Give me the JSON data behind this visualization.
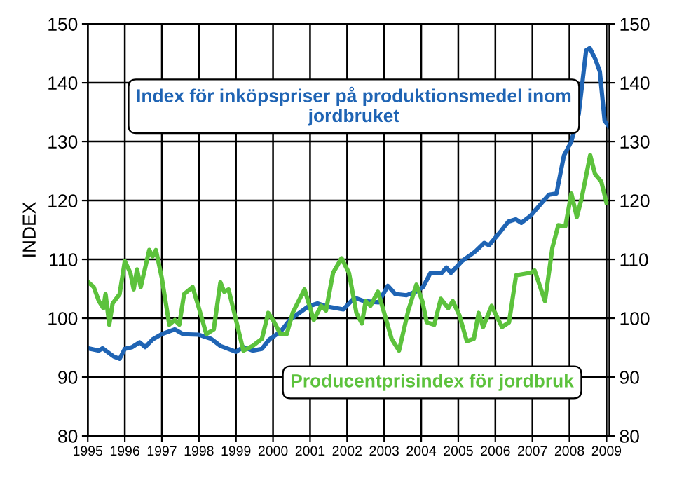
{
  "chart_data": {
    "type": "line",
    "ylabel": "INDEX",
    "xlim": [
      1995,
      2009.08
    ],
    "xticks": [
      1995,
      1996,
      1997,
      1998,
      1999,
      2000,
      2001,
      2002,
      2003,
      2004,
      2005,
      2006,
      2007,
      2008,
      2009
    ],
    "ylim": [
      80,
      150
    ],
    "yticks": [
      80,
      90,
      100,
      110,
      120,
      130,
      140,
      150
    ],
    "y2lim": [
      80,
      150
    ],
    "y2ticks": [
      80,
      90,
      100,
      110,
      120,
      130,
      140,
      150
    ],
    "grid": true,
    "legend": false,
    "marker": "none",
    "line_style": "solid",
    "series": [
      {
        "name": "Index för inköpspriser på produktionsmedel inom jordbruket",
        "color": "#1f64b4",
        "x": [
          1995.0,
          1995.3,
          1995.4,
          1995.7,
          1995.86,
          1996.0,
          1996.2,
          1996.4,
          1996.55,
          1996.75,
          1997.0,
          1997.35,
          1997.57,
          1998.0,
          1998.33,
          1998.58,
          1999.0,
          1999.2,
          1999.45,
          1999.7,
          1999.9,
          2000.2,
          2000.45,
          2000.95,
          2001.2,
          2001.45,
          2001.9,
          2002.2,
          2002.45,
          2002.85,
          2003.1,
          2003.3,
          2003.6,
          2003.85,
          2004.05,
          2004.25,
          2004.55,
          2004.68,
          2004.8,
          2005.1,
          2005.45,
          2005.7,
          2005.83,
          2006.15,
          2006.35,
          2006.55,
          2006.7,
          2006.95,
          2007.25,
          2007.45,
          2007.65,
          2007.85,
          2008.05,
          2008.25,
          2008.45,
          2008.55,
          2008.7,
          2008.82,
          2008.95,
          2009.08
        ],
        "values": [
          94.9,
          94.5,
          94.9,
          93.5,
          93.1,
          94.8,
          95.1,
          95.9,
          95.1,
          96.4,
          97.3,
          98.1,
          97.3,
          97.2,
          96.5,
          95.3,
          94.3,
          95.1,
          94.5,
          94.8,
          96.4,
          97.7,
          99.7,
          102.0,
          102.5,
          102.0,
          101.5,
          103.5,
          102.9,
          102.7,
          105.5,
          104.1,
          103.9,
          104.5,
          105.3,
          107.7,
          107.7,
          108.6,
          107.7,
          109.7,
          111.3,
          112.8,
          112.4,
          114.8,
          116.4,
          116.8,
          116.2,
          117.4,
          119.6,
          121.0,
          121.2,
          127.6,
          130.0,
          134.7,
          145.5,
          145.9,
          144.0,
          141.9,
          133.5,
          132.5
        ]
      },
      {
        "name": "Producentprisindex för jordbruk",
        "color": "#5cc23c",
        "x": [
          1995.0,
          1995.16,
          1995.3,
          1995.42,
          1995.48,
          1995.58,
          1995.67,
          1995.86,
          1996.0,
          1996.15,
          1996.24,
          1996.33,
          1996.43,
          1996.66,
          1996.75,
          1996.84,
          1997.0,
          1997.2,
          1997.35,
          1997.47,
          1997.6,
          1997.83,
          1998.0,
          1998.2,
          1998.4,
          1998.58,
          1998.68,
          1998.8,
          1999.0,
          1999.2,
          1999.45,
          1999.7,
          1999.87,
          2000.0,
          2000.2,
          2000.37,
          2000.53,
          2000.85,
          2001.1,
          2001.3,
          2001.43,
          2001.62,
          2001.85,
          2002.05,
          2002.25,
          2002.4,
          2002.5,
          2002.63,
          2002.83,
          2003.0,
          2003.2,
          2003.4,
          2003.65,
          2003.87,
          2004.03,
          2004.15,
          2004.35,
          2004.53,
          2004.73,
          2004.85,
          2005.03,
          2005.23,
          2005.42,
          2005.55,
          2005.67,
          2005.9,
          2006.18,
          2006.37,
          2006.56,
          2006.94,
          2007.06,
          2007.19,
          2007.34,
          2007.54,
          2007.7,
          2007.89,
          2008.05,
          2008.2,
          2008.33,
          2008.56,
          2008.69,
          2008.86,
          2009.0
        ],
        "values": [
          106.2,
          105.3,
          102.9,
          101.7,
          104.1,
          98.9,
          102.5,
          104.1,
          109.7,
          107.7,
          104.9,
          108.3,
          105.3,
          111.6,
          110.5,
          111.6,
          106.8,
          98.9,
          99.7,
          98.9,
          104.1,
          105.3,
          101.7,
          97.3,
          98.1,
          106.1,
          104.5,
          104.9,
          99.7,
          94.5,
          95.3,
          96.5,
          100.9,
          99.7,
          97.3,
          97.3,
          100.9,
          104.9,
          99.7,
          102.1,
          101.3,
          107.7,
          110.2,
          107.7,
          100.9,
          99.1,
          102.9,
          102.1,
          104.5,
          100.9,
          96.5,
          94.5,
          101.3,
          105.7,
          102.9,
          99.3,
          98.9,
          103.3,
          101.7,
          102.9,
          100.5,
          96.1,
          96.5,
          100.9,
          98.5,
          102.1,
          98.5,
          99.3,
          107.3,
          107.7,
          108.1,
          105.7,
          102.9,
          112.0,
          115.8,
          115.6,
          121.2,
          117.2,
          120.4,
          127.7,
          124.5,
          123.2,
          119.6
        ]
      }
    ]
  }
}
